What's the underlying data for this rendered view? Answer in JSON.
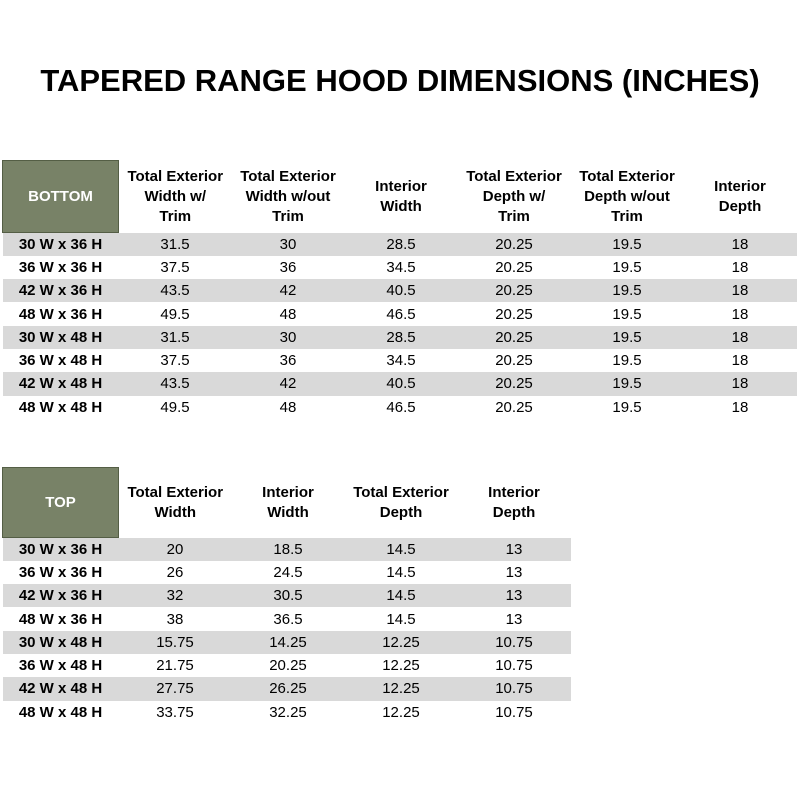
{
  "title": "TAPERED RANGE HOOD DIMENSIONS (INCHES)",
  "colors": {
    "header_fill": "#788267",
    "header_border": "#545e45",
    "header_text": "#ffffff",
    "stripe": "#d9d9d9",
    "text": "#000000",
    "background": "#ffffff"
  },
  "chart_data": [
    {
      "type": "table",
      "name": "BOTTOM",
      "columns": [
        "Total Exterior\nWidth w/\nTrim",
        "Total Exterior\nWidth w/out\nTrim",
        "Interior\nWidth",
        "Total Exterior\nDepth w/\nTrim",
        "Total Exterior\nDepth w/out\nTrim",
        "Interior\nDepth"
      ],
      "rows": [
        {
          "label": "30 W x 36 H",
          "values": [
            "31.5",
            "30",
            "28.5",
            "20.25",
            "19.5",
            "18"
          ]
        },
        {
          "label": "36 W x 36 H",
          "values": [
            "37.5",
            "36",
            "34.5",
            "20.25",
            "19.5",
            "18"
          ]
        },
        {
          "label": "42 W x 36 H",
          "values": [
            "43.5",
            "42",
            "40.5",
            "20.25",
            "19.5",
            "18"
          ]
        },
        {
          "label": "48 W x 36 H",
          "values": [
            "49.5",
            "48",
            "46.5",
            "20.25",
            "19.5",
            "18"
          ]
        },
        {
          "label": "30 W x 48 H",
          "values": [
            "31.5",
            "30",
            "28.5",
            "20.25",
            "19.5",
            "18"
          ]
        },
        {
          "label": "36 W x 48 H",
          "values": [
            "37.5",
            "36",
            "34.5",
            "20.25",
            "19.5",
            "18"
          ]
        },
        {
          "label": "42 W x 48 H",
          "values": [
            "43.5",
            "42",
            "40.5",
            "20.25",
            "19.5",
            "18"
          ]
        },
        {
          "label": "48 W x 48 H",
          "values": [
            "49.5",
            "48",
            "46.5",
            "20.25",
            "19.5",
            "18"
          ]
        }
      ]
    },
    {
      "type": "table",
      "name": "TOP",
      "columns": [
        "Total Exterior\nWidth",
        "Interior\nWidth",
        "Total Exterior\nDepth",
        "Interior\nDepth"
      ],
      "rows": [
        {
          "label": "30 W x 36 H",
          "values": [
            "20",
            "18.5",
            "14.5",
            "13"
          ]
        },
        {
          "label": "36 W x 36 H",
          "values": [
            "26",
            "24.5",
            "14.5",
            "13"
          ]
        },
        {
          "label": "42 W x 36 H",
          "values": [
            "32",
            "30.5",
            "14.5",
            "13"
          ]
        },
        {
          "label": "48 W x 36 H",
          "values": [
            "38",
            "36.5",
            "14.5",
            "13"
          ]
        },
        {
          "label": "30 W x 48 H",
          "values": [
            "15.75",
            "14.25",
            "12.25",
            "10.75"
          ]
        },
        {
          "label": "36 W x 48 H",
          "values": [
            "21.75",
            "20.25",
            "12.25",
            "10.75"
          ]
        },
        {
          "label": "42 W x 48 H",
          "values": [
            "27.75",
            "26.25",
            "12.25",
            "10.75"
          ]
        },
        {
          "label": "48 W x 48 H",
          "values": [
            "33.75",
            "32.25",
            "12.25",
            "10.75"
          ]
        }
      ]
    }
  ]
}
